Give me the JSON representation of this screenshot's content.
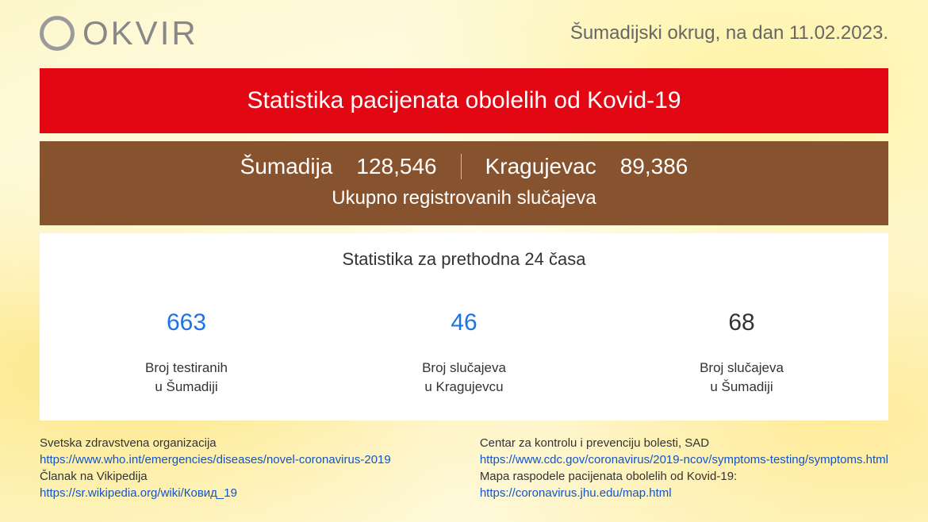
{
  "header": {
    "logo_text": "OKVIR",
    "region_prefix": "Šumadijski okrug, na dan ",
    "date": "11.02.2023."
  },
  "red_banner": {
    "title": "Statistika pacijenata obolelih od Kovid-19",
    "background_color": "#e30613",
    "text_color": "#ffffff"
  },
  "brown_banner": {
    "background_color": "#87522e",
    "text_color": "#ffffff",
    "region1_label": "Šumadija",
    "region1_value": "128,546",
    "region2_label": "Kragujevac",
    "region2_value": "89,386",
    "subtitle": "Ukupno registrovanih slučajeva"
  },
  "stats": {
    "title": "Statistika za prethodna 24 časa",
    "background_color": "#ffffff",
    "blocks": [
      {
        "value": "663",
        "value_color": "#1a73e8",
        "label_line1": "Broj testiranih",
        "label_line2": "u Šumadiji"
      },
      {
        "value": "46",
        "value_color": "#1a73e8",
        "label_line1": "Broj slučajeva",
        "label_line2": "u Kragujevcu"
      },
      {
        "value": "68",
        "value_color": "#333333",
        "label_line1": "Broj slučajeva",
        "label_line2": "u Šumadiji"
      }
    ]
  },
  "footer": {
    "link_color": "#1155cc",
    "left": {
      "line1_text": "Svetska zdravstvena organizacija",
      "line1_url": "https://www.who.int/emergencies/diseases/novel-coronavirus-2019",
      "line2_text": "Članak na Vikipedija",
      "line2_url": "https://sr.wikipedia.org/wiki/Ковид_19"
    },
    "right": {
      "line1_text": "Centar za kontrolu i prevenciju bolesti, SAD",
      "line1_url": "https://www.cdc.gov/coronavirus/2019-ncov/symptoms-testing/symptoms.html",
      "line2_text": "Mapa raspodele pacijenata obolelih od Kovid-19:",
      "line2_url": "https://coronavirus.jhu.edu/map.html"
    }
  }
}
